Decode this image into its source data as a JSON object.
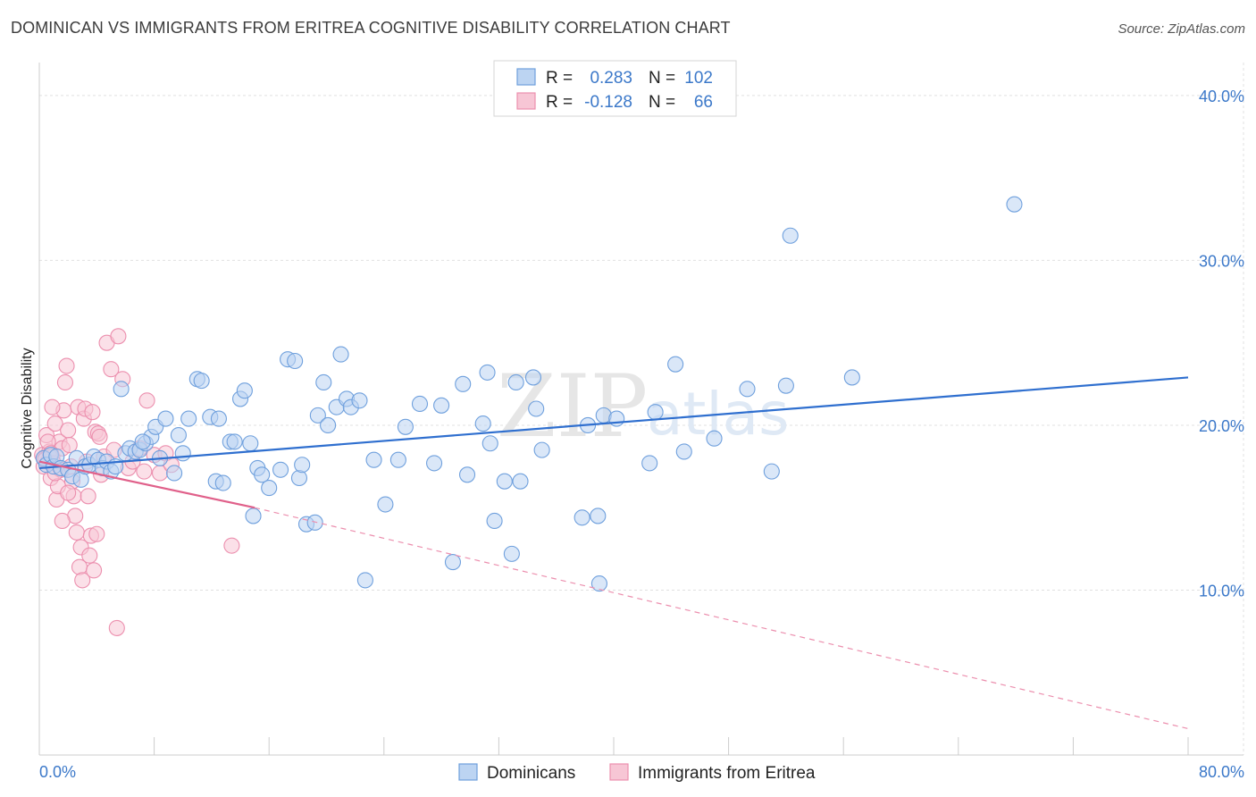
{
  "header": {
    "title": "DOMINICAN VS IMMIGRANTS FROM ERITREA COGNITIVE DISABILITY CORRELATION CHART",
    "source": "Source: ZipAtlas.com"
  },
  "chart_data": {
    "type": "scatter",
    "ylabel": "Cognitive Disability",
    "xlim": [
      0,
      80
    ],
    "ylim": [
      0,
      42
    ],
    "x_tick_labels": [
      {
        "value": 0,
        "label": "0.0%"
      },
      {
        "value": 80,
        "label": "80.0%"
      }
    ],
    "y_tick_labels": [
      {
        "value": 10,
        "label": "10.0%"
      },
      {
        "value": 20,
        "label": "20.0%"
      },
      {
        "value": 30,
        "label": "30.0%"
      },
      {
        "value": 40,
        "label": "40.0%"
      }
    ],
    "grid": true,
    "watermark": {
      "zip": "ZIP",
      "atlas": "atlas"
    },
    "legend": {
      "position": "top-center",
      "entries": [
        {
          "r_label": "R =",
          "r_value": "0.283",
          "n_label": "N =",
          "n_value": "102",
          "color": "#6fa0dd"
        },
        {
          "r_label": "R =",
          "r_value": "-0.128",
          "n_label": "N =",
          "n_value": "66",
          "color": "#ec8fae"
        }
      ]
    },
    "series": [
      {
        "name": "Dominicans",
        "color": "#6fa0dd",
        "fill": "#bcd4f2",
        "trend": {
          "x": [
            0,
            80
          ],
          "y": [
            17.4,
            22.9
          ],
          "style": "solid"
        },
        "points": [
          [
            0.3,
            18.0
          ],
          [
            0.5,
            17.6
          ],
          [
            0.8,
            18.2
          ],
          [
            1.0,
            17.5
          ],
          [
            1.2,
            18.1
          ],
          [
            1.5,
            17.4
          ],
          [
            2.0,
            17.3
          ],
          [
            2.3,
            16.9
          ],
          [
            2.6,
            18.0
          ],
          [
            2.9,
            16.7
          ],
          [
            3.2,
            17.5
          ],
          [
            3.5,
            17.6
          ],
          [
            3.8,
            18.1
          ],
          [
            4.1,
            17.9
          ],
          [
            4.4,
            17.4
          ],
          [
            4.7,
            17.8
          ],
          [
            5.0,
            17.2
          ],
          [
            5.3,
            17.5
          ],
          [
            5.7,
            22.2
          ],
          [
            6.0,
            18.3
          ],
          [
            6.3,
            18.6
          ],
          [
            6.7,
            18.4
          ],
          [
            7.0,
            18.5
          ],
          [
            7.4,
            18.9
          ],
          [
            7.8,
            19.3
          ],
          [
            8.1,
            19.9
          ],
          [
            8.4,
            18.0
          ],
          [
            8.8,
            20.4
          ],
          [
            9.4,
            17.1
          ],
          [
            9.7,
            19.4
          ],
          [
            10.0,
            18.3
          ],
          [
            10.4,
            20.4
          ],
          [
            11.0,
            22.8
          ],
          [
            11.3,
            22.7
          ],
          [
            11.9,
            20.5
          ],
          [
            12.3,
            16.6
          ],
          [
            12.5,
            20.4
          ],
          [
            12.8,
            16.5
          ],
          [
            13.3,
            19.0
          ],
          [
            13.6,
            19.0
          ],
          [
            14.0,
            21.6
          ],
          [
            14.3,
            22.1
          ],
          [
            14.7,
            18.9
          ],
          [
            15.2,
            17.4
          ],
          [
            15.5,
            17.0
          ],
          [
            16.0,
            16.2
          ],
          [
            16.8,
            17.3
          ],
          [
            17.3,
            24.0
          ],
          [
            17.8,
            23.9
          ],
          [
            18.1,
            16.8
          ],
          [
            18.3,
            17.6
          ],
          [
            18.6,
            14.0
          ],
          [
            19.2,
            14.1
          ],
          [
            19.4,
            20.6
          ],
          [
            19.8,
            22.6
          ],
          [
            20.1,
            20.0
          ],
          [
            20.7,
            21.1
          ],
          [
            21.0,
            24.3
          ],
          [
            21.4,
            21.6
          ],
          [
            21.7,
            21.1
          ],
          [
            22.3,
            21.5
          ],
          [
            14.9,
            14.5
          ],
          [
            22.7,
            10.6
          ],
          [
            23.3,
            17.9
          ],
          [
            24.1,
            15.2
          ],
          [
            25.0,
            17.9
          ],
          [
            25.5,
            19.9
          ],
          [
            26.5,
            21.3
          ],
          [
            27.5,
            17.7
          ],
          [
            28.0,
            21.2
          ],
          [
            28.8,
            11.7
          ],
          [
            29.5,
            22.5
          ],
          [
            29.8,
            17.0
          ],
          [
            30.9,
            20.1
          ],
          [
            31.2,
            23.2
          ],
          [
            31.4,
            18.9
          ],
          [
            31.7,
            14.2
          ],
          [
            32.4,
            16.6
          ],
          [
            32.9,
            12.2
          ],
          [
            33.2,
            22.6
          ],
          [
            33.5,
            16.6
          ],
          [
            34.4,
            22.9
          ],
          [
            34.6,
            21.0
          ],
          [
            35.0,
            18.5
          ],
          [
            37.8,
            14.4
          ],
          [
            38.2,
            20.0
          ],
          [
            38.9,
            14.5
          ],
          [
            39.0,
            10.4
          ],
          [
            39.3,
            20.6
          ],
          [
            40.2,
            20.4
          ],
          [
            42.5,
            17.7
          ],
          [
            42.9,
            20.8
          ],
          [
            44.3,
            23.7
          ],
          [
            44.9,
            18.4
          ],
          [
            47.0,
            19.2
          ],
          [
            49.3,
            22.2
          ],
          [
            51.0,
            17.2
          ],
          [
            52.0,
            22.4
          ],
          [
            52.3,
            31.5
          ],
          [
            56.6,
            22.9
          ],
          [
            67.9,
            33.4
          ],
          [
            7.2,
            19.0
          ]
        ]
      },
      {
        "name": "Immigrants from Eritrea",
        "color": "#ec8fae",
        "fill": "#f7c6d5",
        "trend": {
          "x": [
            0,
            15
          ],
          "y": [
            17.8,
            15.0
          ],
          "style": "solid",
          "dashed_extension": {
            "x": [
              15,
              80
            ],
            "y": [
              15.0,
              1.6
            ]
          }
        },
        "points": [
          [
            0.2,
            18.2
          ],
          [
            0.3,
            17.5
          ],
          [
            0.4,
            18.0
          ],
          [
            0.5,
            19.4
          ],
          [
            0.6,
            17.8
          ],
          [
            0.7,
            18.4
          ],
          [
            0.8,
            16.8
          ],
          [
            0.9,
            18.1
          ],
          [
            1.0,
            17.7
          ],
          [
            1.1,
            20.1
          ],
          [
            1.2,
            15.5
          ],
          [
            1.3,
            16.3
          ],
          [
            1.4,
            19.0
          ],
          [
            1.5,
            17.3
          ],
          [
            1.6,
            18.6
          ],
          [
            1.7,
            20.9
          ],
          [
            1.8,
            22.6
          ],
          [
            1.9,
            23.6
          ],
          [
            2.0,
            19.7
          ],
          [
            2.1,
            18.8
          ],
          [
            2.2,
            17.5
          ],
          [
            2.3,
            16.6
          ],
          [
            2.4,
            15.7
          ],
          [
            2.5,
            14.5
          ],
          [
            2.6,
            13.5
          ],
          [
            2.7,
            21.1
          ],
          [
            2.8,
            11.4
          ],
          [
            2.9,
            12.6
          ],
          [
            3.0,
            10.6
          ],
          [
            3.1,
            20.4
          ],
          [
            3.2,
            21.0
          ],
          [
            3.3,
            17.8
          ],
          [
            3.4,
            15.7
          ],
          [
            3.5,
            12.1
          ],
          [
            3.6,
            13.3
          ],
          [
            3.7,
            20.8
          ],
          [
            3.8,
            11.2
          ],
          [
            3.9,
            19.6
          ],
          [
            4.0,
            13.4
          ],
          [
            4.1,
            19.5
          ],
          [
            4.2,
            19.3
          ],
          [
            4.3,
            17.0
          ],
          [
            4.5,
            18.1
          ],
          [
            4.7,
            25.0
          ],
          [
            5.0,
            23.4
          ],
          [
            5.2,
            18.5
          ],
          [
            5.5,
            25.4
          ],
          [
            5.8,
            22.8
          ],
          [
            6.2,
            17.4
          ],
          [
            6.5,
            17.8
          ],
          [
            7.0,
            18.6
          ],
          [
            7.3,
            17.2
          ],
          [
            7.5,
            21.5
          ],
          [
            8.0,
            18.2
          ],
          [
            8.4,
            17.1
          ],
          [
            8.8,
            18.3
          ],
          [
            9.2,
            17.6
          ],
          [
            0.6,
            19.0
          ],
          [
            1.1,
            17.1
          ],
          [
            0.9,
            21.1
          ],
          [
            1.6,
            14.2
          ],
          [
            2.0,
            15.9
          ],
          [
            5.4,
            7.7
          ],
          [
            13.4,
            12.7
          ],
          [
            0.4,
            17.9
          ],
          [
            0.8,
            18.3
          ]
        ]
      }
    ]
  },
  "bottom_legend": [
    {
      "label": "Dominicans",
      "color": "#6fa0dd"
    },
    {
      "label": "Immigrants from Eritrea",
      "color": "#ec8fae"
    }
  ]
}
